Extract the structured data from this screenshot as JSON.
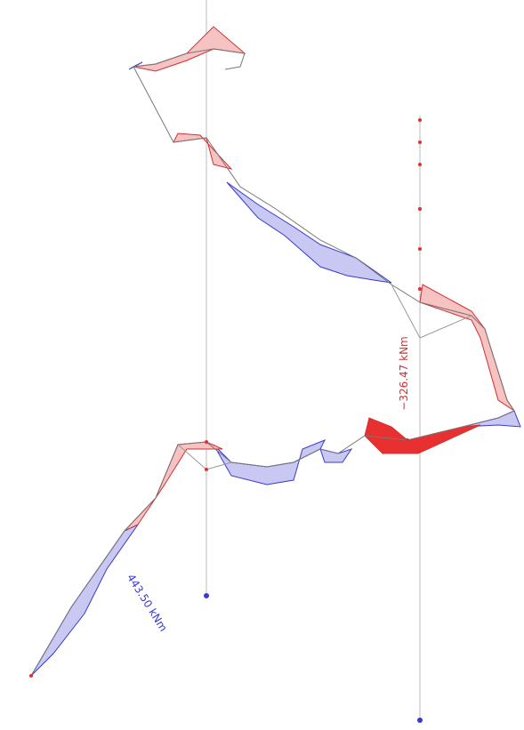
{
  "labels": [
    {
      "text": "−326.47 kNm"
    },
    {
      "text": "443.50 kNm"
    }
  ]
}
